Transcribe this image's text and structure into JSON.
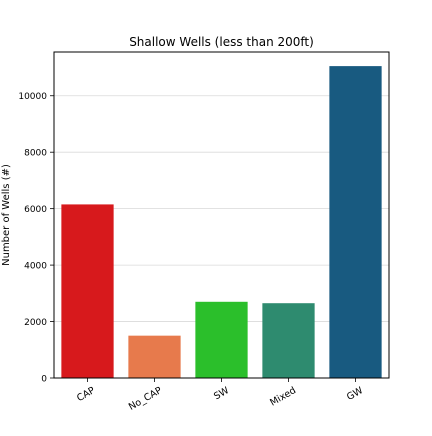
{
  "chart_data": {
    "type": "bar",
    "title": "Shallow Wells (less than 200ft)",
    "xlabel": "",
    "ylabel": "Number of Wells (#)",
    "categories": [
      "CAP",
      "No_CAP",
      "SW",
      "Mixed",
      "GW"
    ],
    "values": [
      6150,
      1500,
      2700,
      2650,
      11050
    ],
    "colors": [
      "#d7191c",
      "#e77a4c",
      "#2bbf2b",
      "#2e8b6f",
      "#185a80"
    ],
    "ylim": [
      0,
      11550
    ],
    "yticks": [
      0,
      2000,
      4000,
      6000,
      8000,
      10000
    ],
    "ytick_labels": [
      "0",
      "2000",
      "4000",
      "6000",
      "8000",
      "10000"
    ],
    "grid": "y",
    "xtick_rotation": -30
  }
}
